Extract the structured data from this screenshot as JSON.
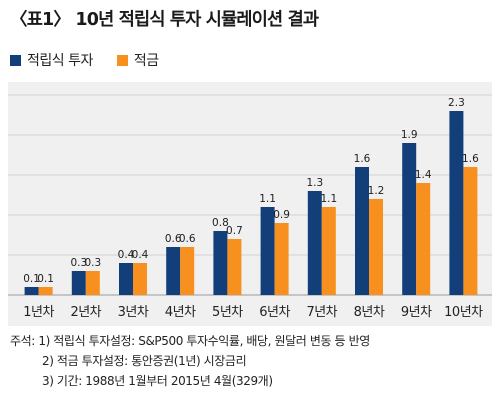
{
  "title": "〈표1〉 10년 적립식 투자 시뮬레이션 결과",
  "colors": {
    "series_1": "#123f7a",
    "series_2": "#f7901e",
    "panel_bg": "#f0f0f0"
  },
  "notes": {
    "prefix": "주석:",
    "lines": [
      "1) 적립식 투자설정: S&P500 투자수익률, 배당, 원달러 변동 등 반영",
      "2) 적금 투자설정: 통안증권(1년) 시장금리",
      "3) 기간: 1988년 1월부터 2015년 4월(329개)"
    ]
  },
  "chart_data": {
    "type": "bar",
    "title": "",
    "xlabel": "",
    "ylabel": "",
    "legend_position": "top-left",
    "grid": true,
    "ylim": [
      0,
      2.5
    ],
    "categories": [
      "1년차",
      "2년차",
      "3년차",
      "4년차",
      "5년차",
      "6년차",
      "7년차",
      "8년차",
      "9년차",
      "10년차"
    ],
    "series": [
      {
        "name": "적립식 투자",
        "color": "#123f7a",
        "values": [
          0.1,
          0.3,
          0.4,
          0.6,
          0.8,
          1.1,
          1.3,
          1.6,
          1.9,
          2.3
        ],
        "labels": [
          "0.1",
          "0.3",
          "0.4",
          "0.6",
          "0.8",
          "1.1",
          "1.3",
          "1.6",
          "1.9",
          "2.3"
        ]
      },
      {
        "name": "적금",
        "color": "#f7901e",
        "values": [
          0.1,
          0.3,
          0.4,
          0.6,
          0.7,
          0.9,
          1.1,
          1.2,
          1.4,
          1.6
        ],
        "labels": [
          "0.1",
          "0.3",
          "0.4",
          "0.6",
          "0.7",
          "0.9",
          "1.1",
          "1.2",
          "1.4",
          "1.6"
        ]
      }
    ]
  }
}
